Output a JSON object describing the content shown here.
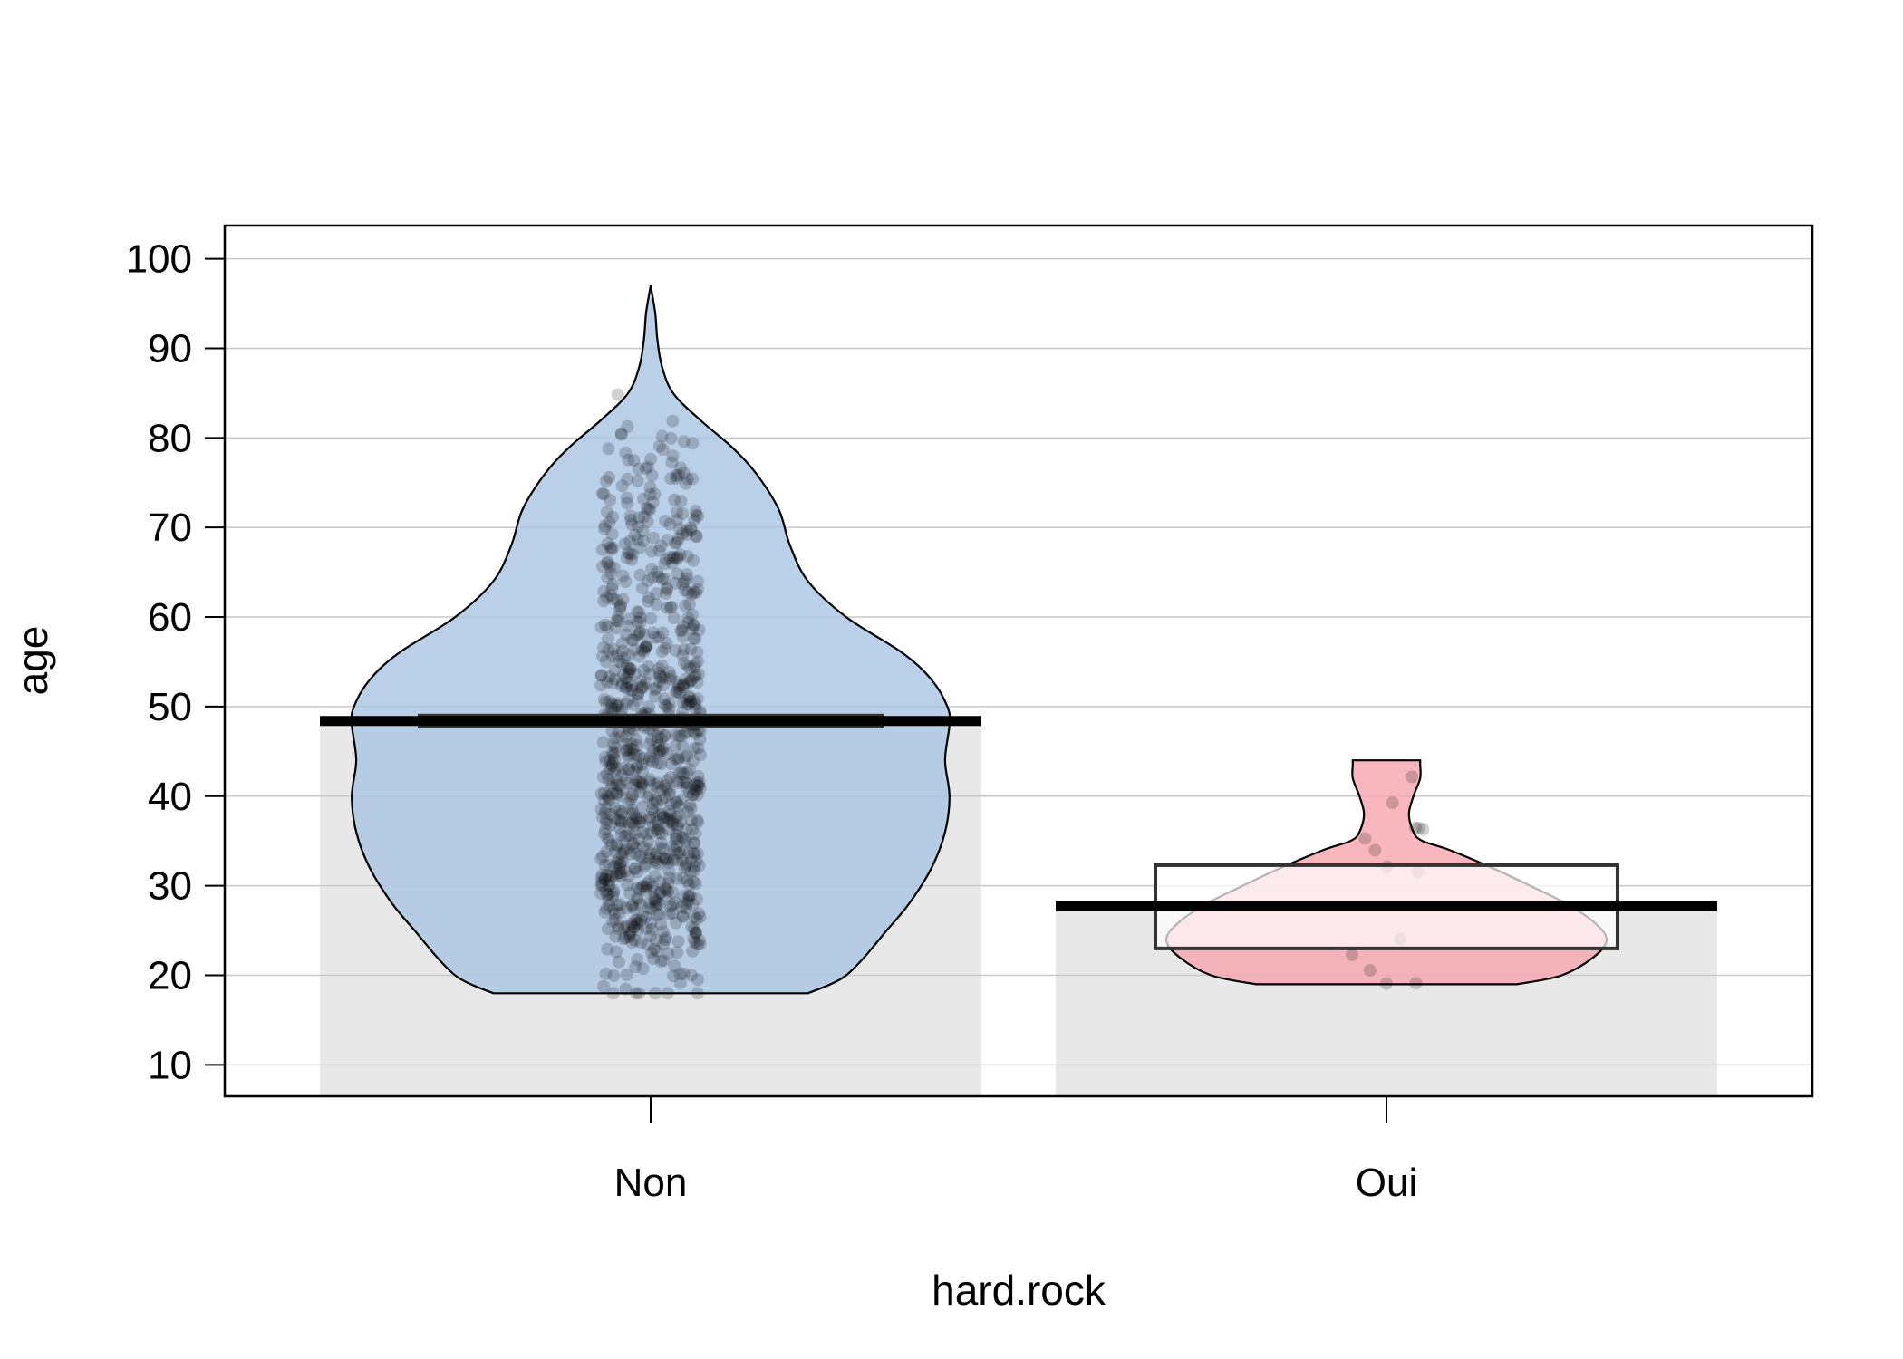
{
  "chart_data": {
    "type": "pirateplot",
    "xlabel": "hard.rock",
    "ylabel": "age",
    "ylim": [
      6.5,
      103.7
    ],
    "yticks": [
      10,
      20,
      30,
      40,
      50,
      60,
      70,
      80,
      90,
      100
    ],
    "grid": true,
    "legend": "none",
    "categories": [
      "Non",
      "Oui"
    ],
    "groups": [
      {
        "name": "Non",
        "mean": 48.4,
        "interval": [
          47.8,
          49.0
        ],
        "min": 18,
        "max": 97,
        "color": "#a9c3e2",
        "bar_color": "#e8e8e8",
        "density": [
          [
            18,
            0.7
          ],
          [
            19,
            0.8
          ],
          [
            20,
            0.87
          ],
          [
            22,
            0.95
          ],
          [
            25,
            1.05
          ],
          [
            28,
            1.15
          ],
          [
            32,
            1.25
          ],
          [
            36,
            1.31
          ],
          [
            40,
            1.33
          ],
          [
            44,
            1.31
          ],
          [
            48,
            1.33
          ],
          [
            50,
            1.32
          ],
          [
            53,
            1.25
          ],
          [
            56,
            1.12
          ],
          [
            60,
            0.87
          ],
          [
            64,
            0.7
          ],
          [
            68,
            0.62
          ],
          [
            72,
            0.57
          ],
          [
            76,
            0.47
          ],
          [
            79,
            0.36
          ],
          [
            82,
            0.22
          ],
          [
            85,
            0.1
          ],
          [
            88,
            0.05
          ],
          [
            91,
            0.03
          ],
          [
            94,
            0.02
          ],
          [
            97,
            0.0
          ]
        ]
      },
      {
        "name": "Oui",
        "mean": 27.7,
        "interval": [
          23.0,
          32.3
        ],
        "min": 19,
        "max": 44,
        "color": "#f6a5ae",
        "bar_color": "#e8e8e8",
        "density": [
          [
            19,
            0.58
          ],
          [
            20,
            0.78
          ],
          [
            22,
            0.92
          ],
          [
            24,
            0.98
          ],
          [
            26,
            0.92
          ],
          [
            28,
            0.8
          ],
          [
            30,
            0.64
          ],
          [
            32,
            0.47
          ],
          [
            34,
            0.28
          ],
          [
            35,
            0.16
          ],
          [
            36,
            0.12
          ],
          [
            38,
            0.1
          ],
          [
            40,
            0.12
          ],
          [
            42,
            0.15
          ],
          [
            43.5,
            0.15
          ],
          [
            44,
            0.15
          ]
        ]
      }
    ]
  }
}
